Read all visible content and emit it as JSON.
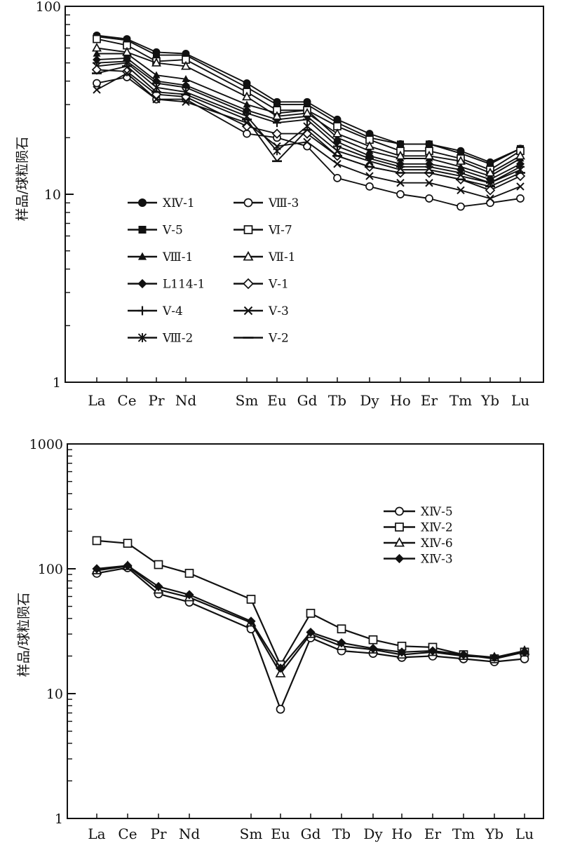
{
  "chart_data": [
    {
      "type": "line",
      "title": "",
      "xlabel": "",
      "ylabel": "样品/球粒陨石",
      "yscale": "log",
      "ylim": [
        1,
        100
      ],
      "yticks": [
        "1",
        "10",
        "100"
      ],
      "categories": [
        "La",
        "Ce",
        "Pr",
        "Nd",
        "Sm",
        "Eu",
        "Gd",
        "Tb",
        "Dy",
        "Ho",
        "Er",
        "Tm",
        "Yb",
        "Lu"
      ],
      "legend": "inside-lower-left",
      "series": [
        {
          "name": "ⅩⅣ-1",
          "marker": "filled-circle",
          "values": [
            70,
            67,
            57,
            56,
            39,
            31,
            31,
            25,
            21,
            18.5,
            18.5,
            17,
            14.8,
            17.5
          ]
        },
        {
          "name": "Ⅴ-5",
          "marker": "filled-square",
          "values": [
            69,
            66,
            55,
            55,
            37,
            30,
            30,
            24,
            20,
            18.5,
            18.5,
            16.5,
            14.5,
            17.5
          ]
        },
        {
          "name": "Ⅷ-1",
          "marker": "filled-triangle",
          "values": [
            56,
            56,
            43,
            41,
            30,
            27,
            28,
            20,
            17,
            15.5,
            15.5,
            14,
            12.5,
            15.5
          ]
        },
        {
          "name": "L114-1",
          "marker": "filled-diamond",
          "values": [
            52,
            53,
            40,
            38,
            28,
            25,
            26,
            19,
            16,
            14.5,
            14.5,
            13.5,
            12,
            14.5
          ]
        },
        {
          "name": "Ⅴ-4",
          "marker": "plus",
          "values": [
            50,
            51,
            39,
            37,
            27,
            24,
            25,
            18,
            15.5,
            14,
            14,
            13,
            11.5,
            14
          ]
        },
        {
          "name": "Ⅷ-2",
          "marker": "star",
          "values": [
            48,
            50,
            37,
            35,
            26,
            17,
            23,
            17,
            15,
            13.5,
            13.5,
            12.5,
            11.5,
            13.5
          ]
        },
        {
          "name": "Ⅷ-3",
          "marker": "open-circle",
          "values": [
            39,
            42,
            32,
            32,
            21,
            20,
            18,
            12.2,
            11,
            10,
            9.5,
            8.6,
            9,
            9.5
          ]
        },
        {
          "name": "Ⅵ-7",
          "marker": "open-square",
          "values": [
            67,
            62,
            51,
            52,
            35,
            28,
            28,
            23,
            19.5,
            17,
            17,
            15.5,
            13.5,
            17
          ]
        },
        {
          "name": "Ⅶ-1",
          "marker": "open-triangle",
          "values": [
            60,
            57,
            50,
            48,
            33,
            26,
            27,
            21,
            18,
            16,
            16,
            15,
            13,
            16
          ]
        },
        {
          "name": "Ⅴ-1",
          "marker": "open-diamond",
          "values": [
            46,
            45,
            34,
            33,
            23,
            21,
            21,
            16,
            14,
            13,
            13,
            12,
            10.5,
            12.5
          ]
        },
        {
          "name": "Ⅴ-3",
          "marker": "cross",
          "values": [
            36,
            44,
            32,
            31,
            24,
            18,
            19,
            14.5,
            12.5,
            11.5,
            11.5,
            10.5,
            9.5,
            11
          ]
        },
        {
          "name": "Ⅴ-2",
          "marker": "dash",
          "values": [
            44,
            48,
            35,
            34,
            25,
            15,
            22,
            16,
            14,
            13,
            13,
            12,
            11,
            13
          ]
        }
      ]
    },
    {
      "type": "line",
      "title": "",
      "xlabel": "",
      "ylabel": "样品/球粒陨石",
      "yscale": "log",
      "ylim": [
        1,
        1000
      ],
      "yticks": [
        "1",
        "10",
        "100",
        "1000"
      ],
      "categories": [
        "La",
        "Ce",
        "Pr",
        "Nd",
        "Sm",
        "Eu",
        "Gd",
        "Tb",
        "Dy",
        "Ho",
        "Er",
        "Tm",
        "Yb",
        "Lu"
      ],
      "legend": "top-right",
      "series": [
        {
          "name": "ⅩⅣ-5",
          "marker": "open-circle",
          "values": [
            92,
            102,
            63,
            54,
            33,
            7.5,
            28,
            22,
            21,
            19.5,
            20,
            19,
            18,
            19
          ]
        },
        {
          "name": "ⅩⅣ-2",
          "marker": "open-square",
          "values": [
            168,
            160,
            108,
            92,
            57,
            17,
            44,
            33,
            27,
            24,
            23.5,
            20.5,
            19,
            21.5
          ]
        },
        {
          "name": "ⅩⅣ-6",
          "marker": "open-triangle",
          "values": [
            97,
            105,
            68,
            59,
            37,
            14.5,
            30,
            24,
            22.5,
            20.5,
            21.5,
            20,
            19.5,
            22
          ]
        },
        {
          "name": "ⅩⅣ-3",
          "marker": "filled-diamond",
          "values": [
            100,
            106,
            72,
            62,
            38,
            16,
            31,
            25.5,
            23,
            21.5,
            22,
            20.5,
            19.5,
            21.5
          ]
        }
      ]
    }
  ]
}
